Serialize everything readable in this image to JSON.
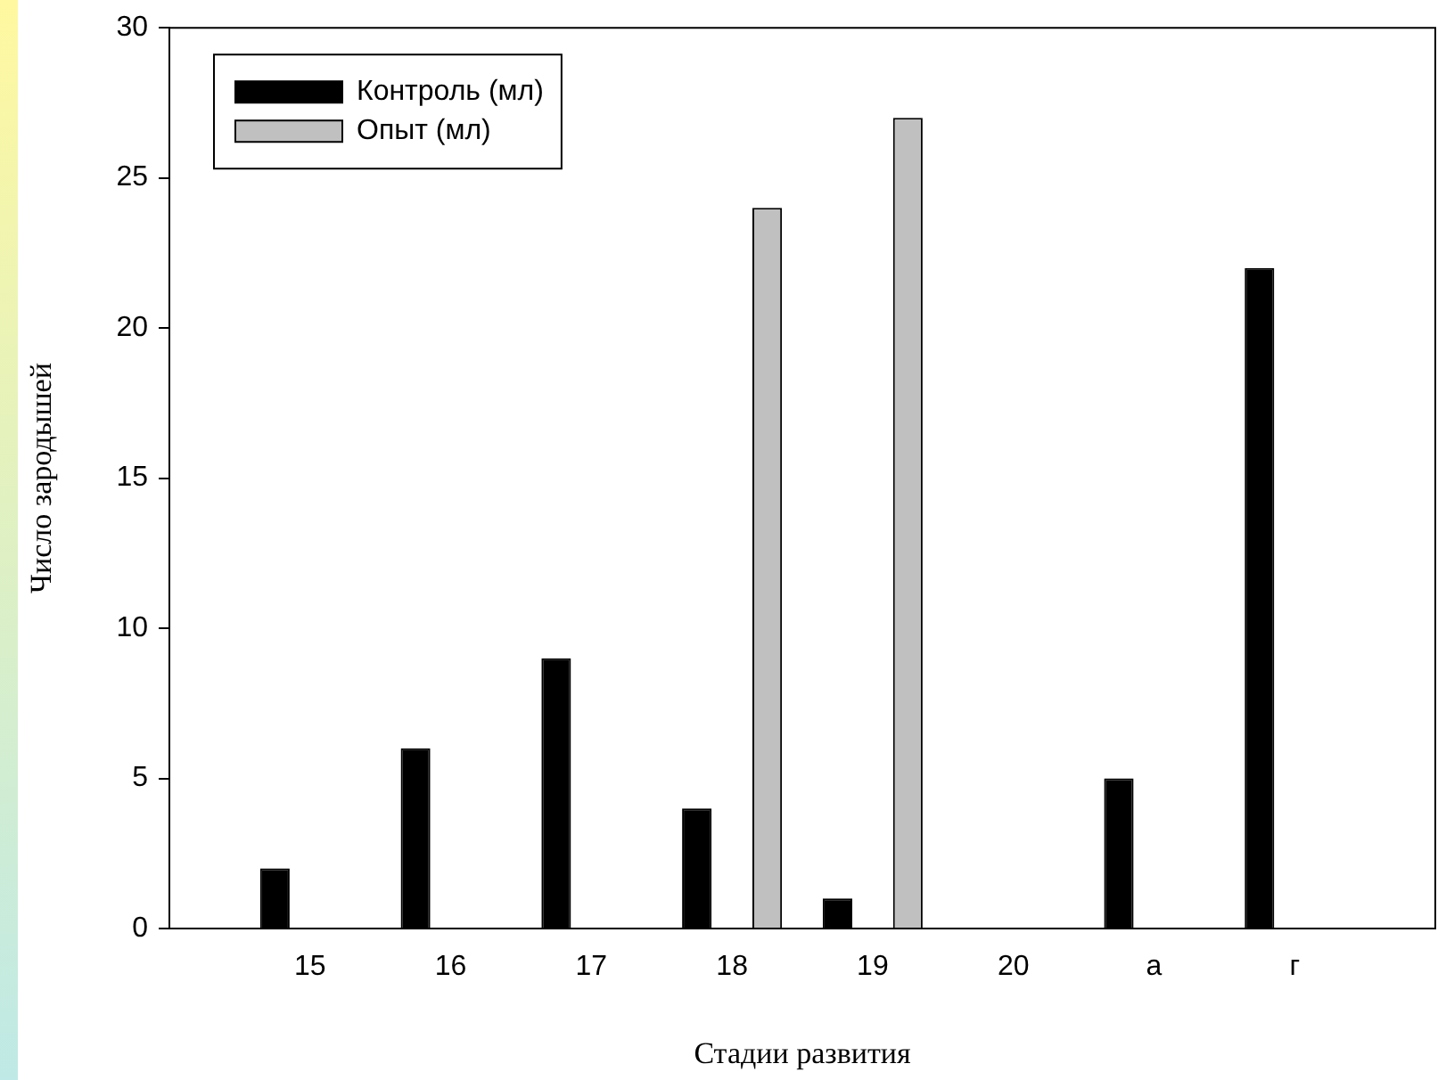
{
  "chart_data": {
    "type": "bar",
    "xlabel": "Стадии развития",
    "ylabel": "Число зародышей",
    "categories": [
      null,
      "15",
      "16",
      "17",
      "18",
      "19",
      "20",
      "а",
      "г",
      null
    ],
    "series": [
      {
        "name": "Контроль (мл)",
        "color": "#000000",
        "values": [
          null,
          2,
          6,
          9,
          4,
          1,
          0,
          5,
          22,
          null
        ]
      },
      {
        "name": "Опыт (мл)",
        "color": "#c0c0c0",
        "values": [
          null,
          0,
          0,
          0,
          24,
          27,
          0,
          0,
          0,
          null
        ]
      }
    ],
    "ylim": [
      0,
      30
    ],
    "yticks": [
      0,
      5,
      10,
      15,
      20,
      25,
      30
    ],
    "grid": false,
    "legend": "top left"
  }
}
